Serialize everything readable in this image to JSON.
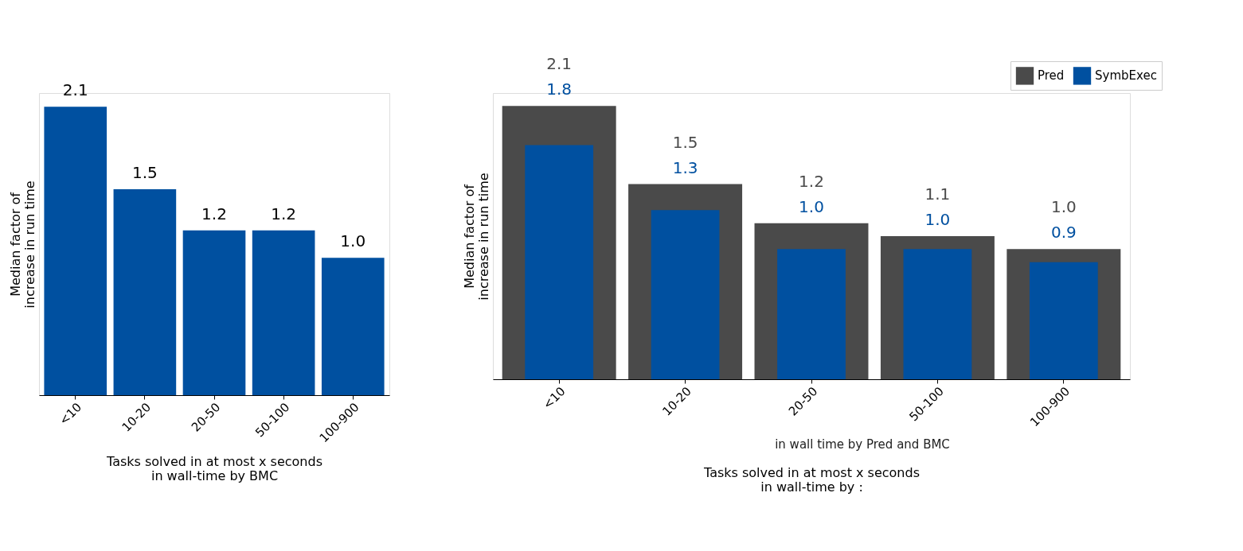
{
  "chart_data": [
    {
      "type": "bar",
      "categories": [
        "<10",
        "10-20",
        "20-50",
        "50-100",
        "100-900"
      ],
      "ylabel": "Median factor of\nincrease in run time",
      "xlabel": "Tasks solved in at most x seconds\nin wall-time by BMC",
      "data_labels": true,
      "grid": false,
      "series": [
        {
          "color": "#0050a0",
          "values": [
            2.1,
            1.5,
            1.2,
            1.2,
            1.0
          ],
          "value_labels": [
            "2.1",
            "1.5",
            "1.2",
            "1.2",
            "1.0"
          ]
        }
      ]
    },
    {
      "type": "bar",
      "categories": [
        "<10",
        "10-20",
        "20-50",
        "50-100",
        "100-900"
      ],
      "ylabel": "Median factor of\nincrease in run time",
      "xlabel": "Tasks solved in at most x seconds\nin wall-time by :",
      "data_labels": true,
      "grid": false,
      "legend": "top right",
      "annotations": [
        "in wall time by Pred and BMC"
      ],
      "series": [
        {
          "name": "Pred",
          "color": "#4a4a4a",
          "values": [
            2.1,
            1.5,
            1.2,
            1.1,
            1.0
          ],
          "value_labels": [
            "2.1",
            "1.5",
            "1.2",
            "1.1",
            "1.0"
          ]
        },
        {
          "name": "SymbExec",
          "color": "#0050a0",
          "values": [
            1.8,
            1.3,
            1.0,
            1.0,
            0.9
          ],
          "value_labels": [
            "1.8",
            "1.3",
            "1.0",
            "1.0",
            "0.9"
          ]
        }
      ]
    }
  ]
}
